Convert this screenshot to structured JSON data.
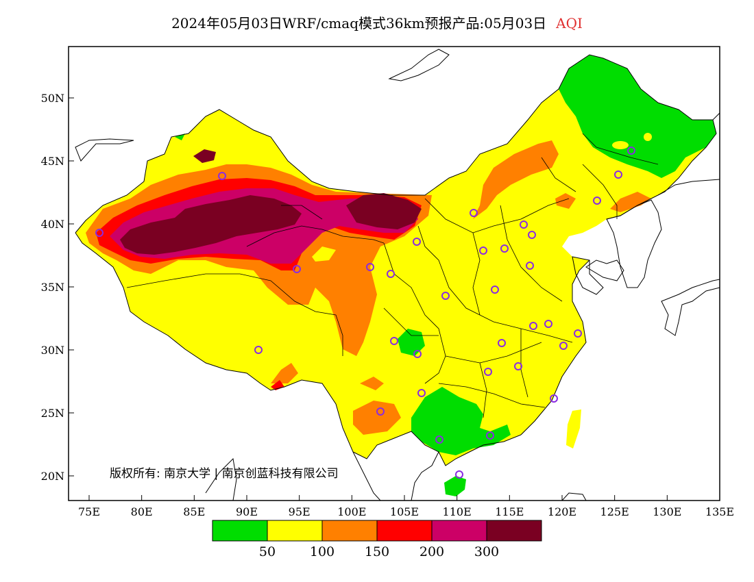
{
  "title": {
    "main": "2024年05月03日WRF/cmaq模式36km预报产品:05月03日",
    "variable": "AQI",
    "variable_color": "#e03030"
  },
  "map": {
    "x_ticks": [
      "75E",
      "80E",
      "85E",
      "90E",
      "95E",
      "100E",
      "105E",
      "110E",
      "115E",
      "120E",
      "125E",
      "130E",
      "135E"
    ],
    "y_ticks": [
      "50N",
      "45N",
      "40N",
      "35N",
      "30N",
      "25N",
      "20N"
    ],
    "copyright": "版权所有: 南京大学 | 南京创蓝科技有限公司",
    "station_marker_color": "#8a2be2"
  },
  "legend": {
    "colors": [
      "#00dd00",
      "#ffff00",
      "#ff8000",
      "#ff0000",
      "#cc0066",
      "#7a0022"
    ],
    "labels": [
      "50",
      "100",
      "150",
      "200",
      "300"
    ]
  }
}
